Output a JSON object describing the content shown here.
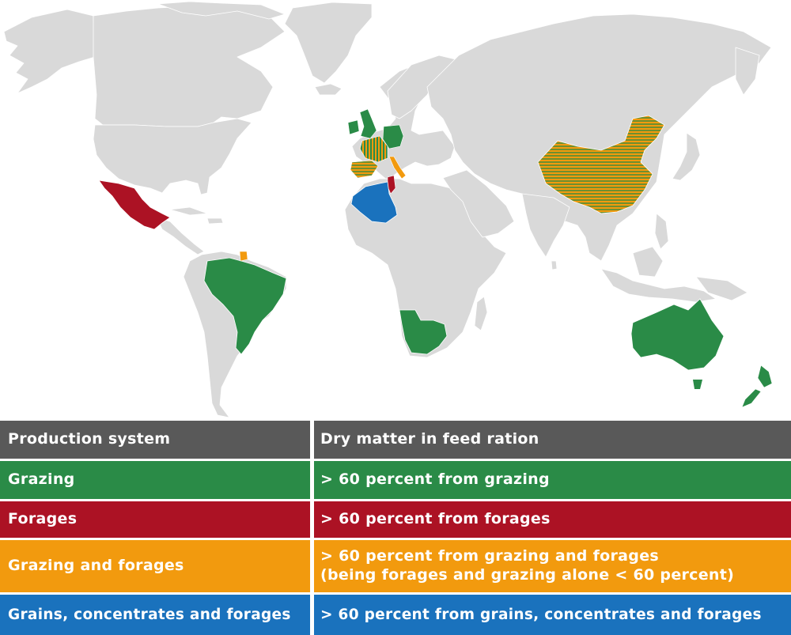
{
  "colors": {
    "land": "#d9d9d9",
    "grazing": "#2a8b47",
    "forages": "#ac1224",
    "grazing_and_forages": "#f29a0e",
    "grains_concentrates_forages": "#1a72bd",
    "header": "#595959"
  },
  "legend": {
    "header": {
      "col1": "Production system",
      "col2": "Dry matter in feed ration"
    },
    "rows": [
      {
        "system": "Grazing",
        "ration_line1": "> 60 percent from grazing",
        "ration_line2": ""
      },
      {
        "system": "Forages",
        "ration_line1": "> 60 percent from forages",
        "ration_line2": ""
      },
      {
        "system": "Grazing and forages",
        "ration_line1": "> 60 percent from grazing and forages",
        "ration_line2": "(being forages and grazing alone < 60 percent)"
      },
      {
        "system": "Grains, concentrates and forages",
        "ration_line1": "> 60 percent from grains, concentrates and forages",
        "ration_line2": ""
      }
    ]
  },
  "map": {
    "highlighted_countries": [
      {
        "country": "united-kingdom",
        "system": "grazing"
      },
      {
        "country": "ireland",
        "system": "grazing"
      },
      {
        "country": "germany",
        "system": "grazing"
      },
      {
        "country": "brazil",
        "system": "grazing"
      },
      {
        "country": "south-africa",
        "system": "grazing"
      },
      {
        "country": "namibia",
        "system": "grazing"
      },
      {
        "country": "australia",
        "system": "grazing"
      },
      {
        "country": "new-zealand",
        "system": "grazing"
      },
      {
        "country": "mexico",
        "system": "forages"
      },
      {
        "country": "tunisia",
        "system": "forages"
      },
      {
        "country": "french-guiana",
        "system": "grazing and forages"
      },
      {
        "country": "france",
        "system": "grazing and forages / grazing (hatched)"
      },
      {
        "country": "spain",
        "system": "grazing and forages / grazing (hatched)"
      },
      {
        "country": "italy",
        "system": "grazing and forages"
      },
      {
        "country": "china",
        "system": "grazing and forages / grazing (hatched)"
      },
      {
        "country": "algeria",
        "system": "grains, concentrates and forages"
      }
    ]
  }
}
